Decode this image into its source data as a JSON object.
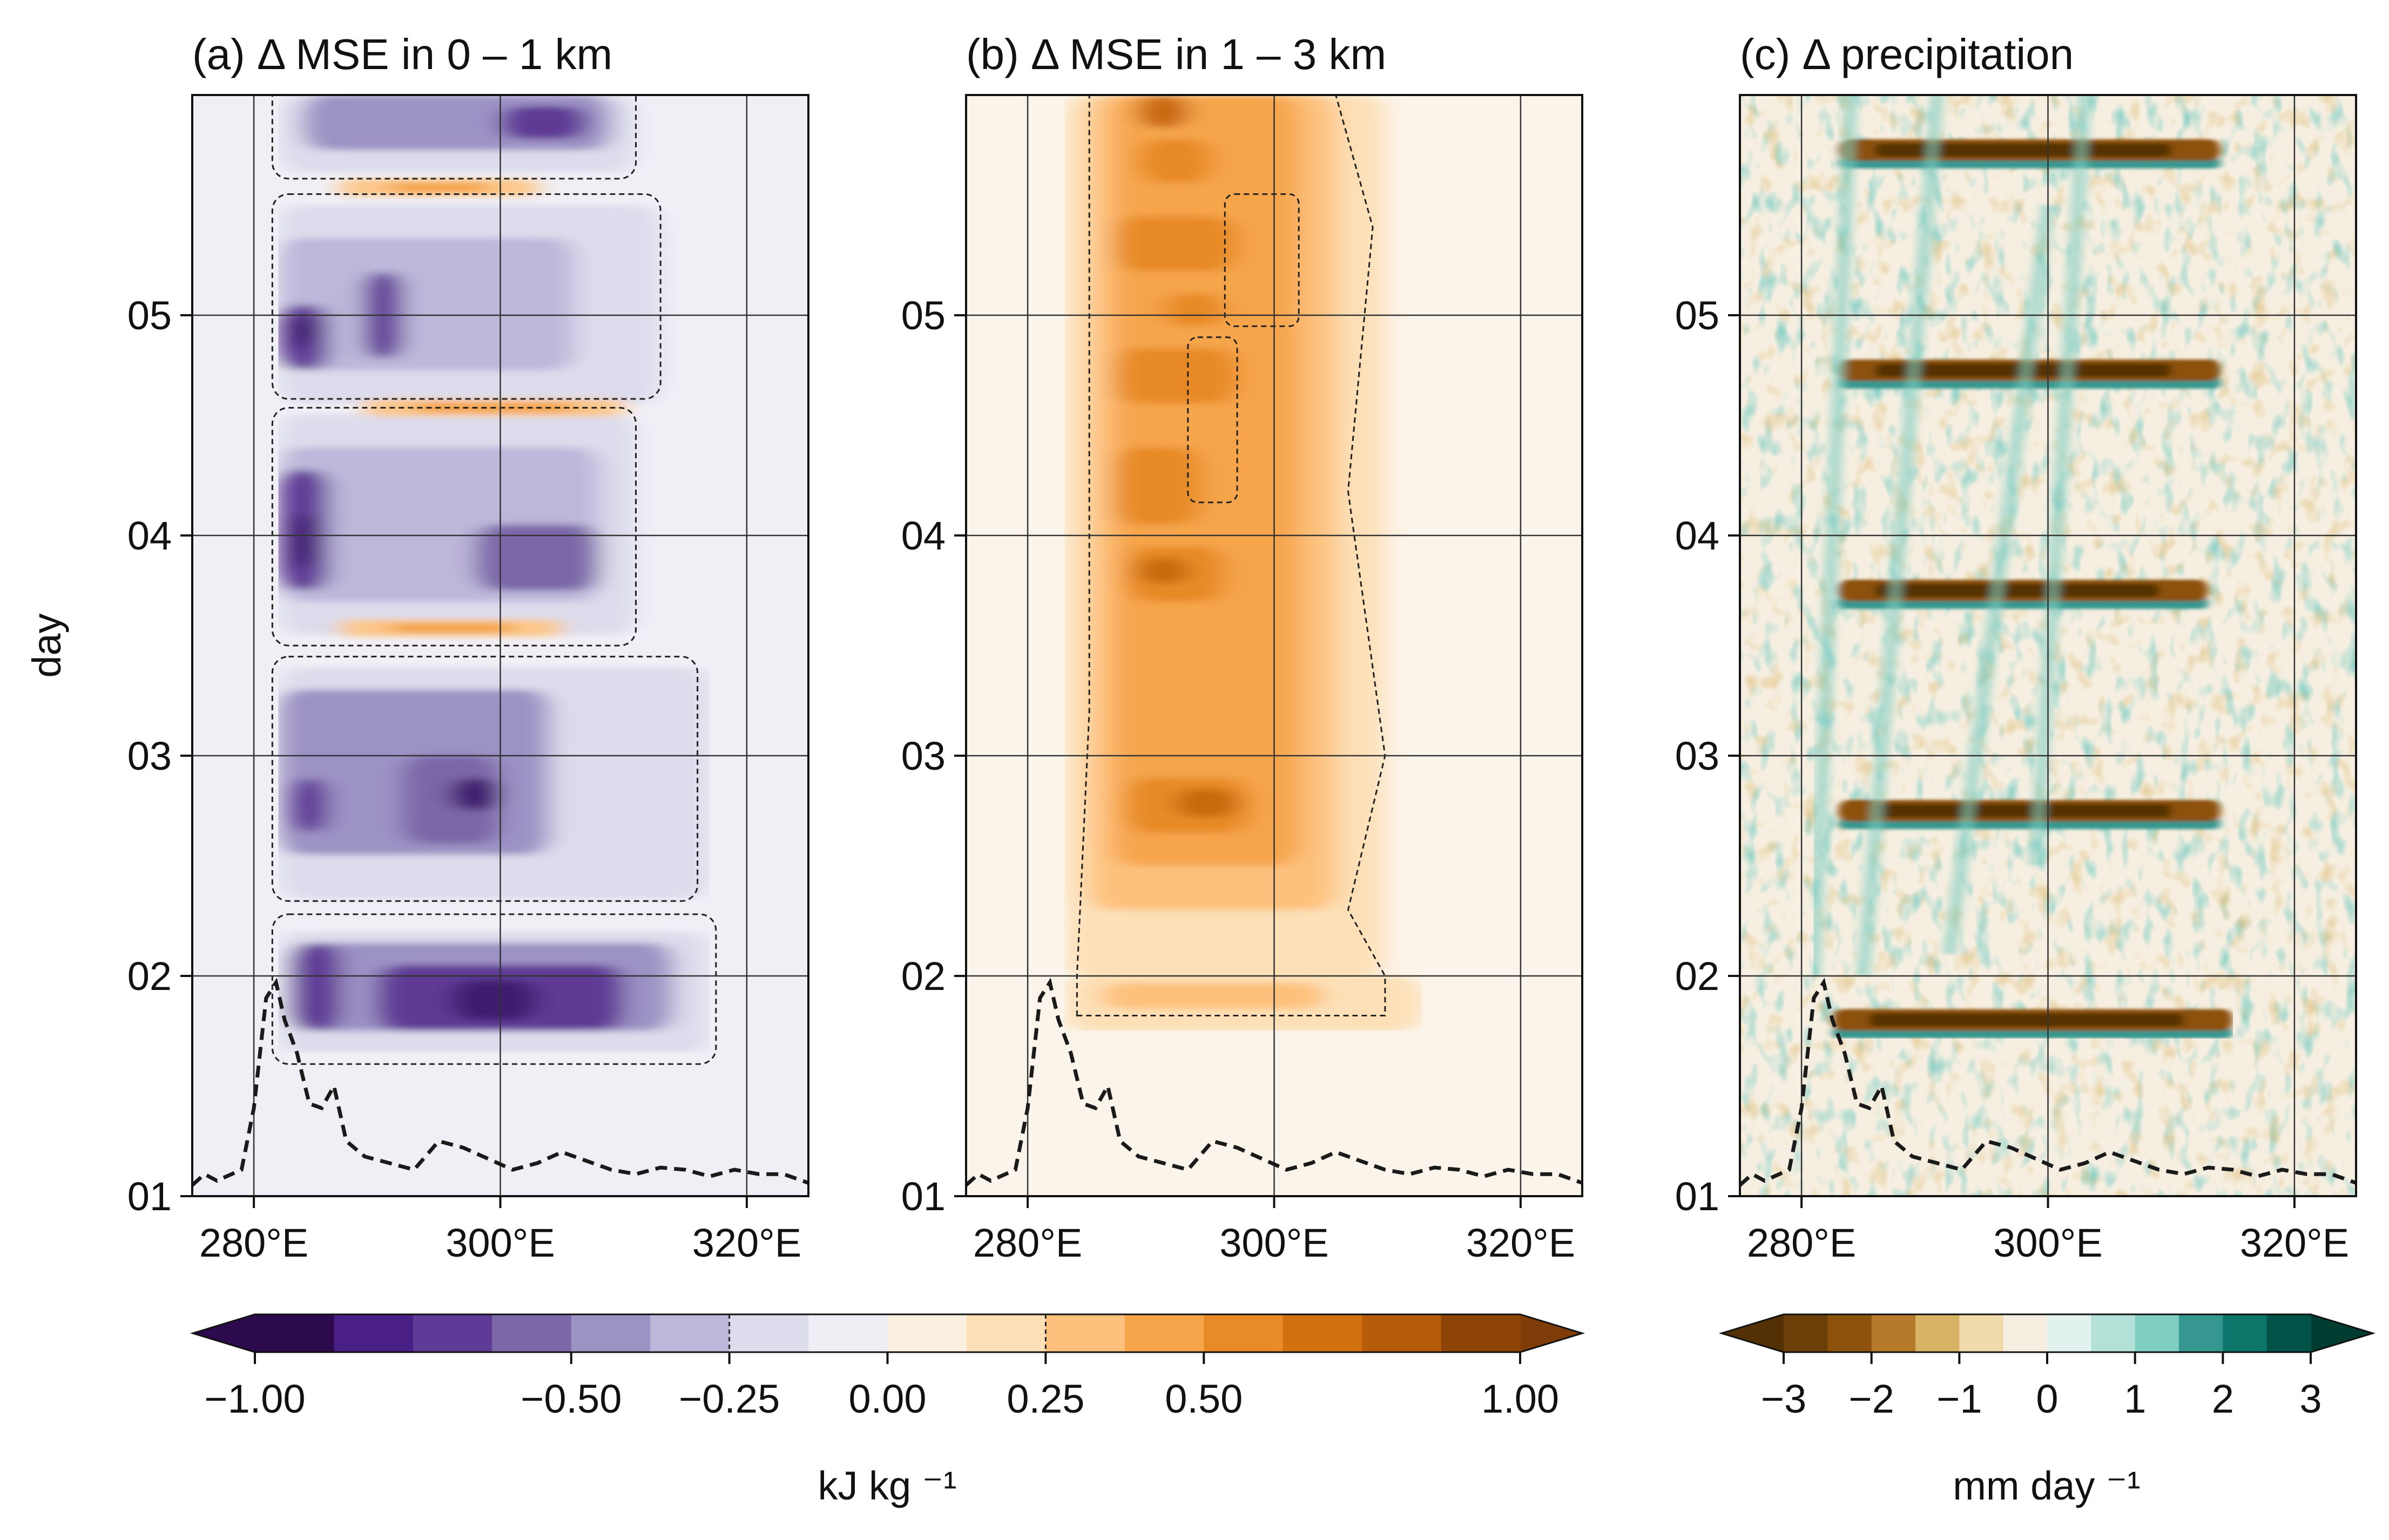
{
  "y_axis_label": "day",
  "chart_data": [
    {
      "type": "heatmap",
      "title": "(a) Δ MSE in 0 – 1 km",
      "x_ticks": [
        280,
        300,
        320
      ],
      "x_tick_labels": [
        "280°E",
        "300°E",
        "320°E"
      ],
      "xlim": [
        275,
        325
      ],
      "y_ticks": [
        1,
        2,
        3,
        4,
        5
      ],
      "y_tick_labels": [
        "01",
        "02",
        "03",
        "04",
        "05"
      ],
      "ylim": [
        1,
        6
      ],
      "ylabel": "day",
      "grid": true,
      "colormap": "purple-orange diverging",
      "dominant_sign": "negative",
      "bands_day": [
        1.75,
        1.93,
        2.2,
        2.45,
        2.8,
        3.1,
        3.55,
        3.85,
        4.45,
        4.85,
        5.55,
        5.85
      ],
      "positive_bands_day": [
        3.58,
        4.58,
        5.58
      ],
      "terrain_profile": [
        [
          275,
          1.05
        ],
        [
          276,
          1.1
        ],
        [
          277,
          1.07
        ],
        [
          279,
          1.12
        ],
        [
          280,
          1.4
        ],
        [
          281,
          1.9
        ],
        [
          281.8,
          1.97
        ],
        [
          282.5,
          1.8
        ],
        [
          283.5,
          1.65
        ],
        [
          284.5,
          1.42
        ],
        [
          285.5,
          1.4
        ],
        [
          286.5,
          1.5
        ],
        [
          287.5,
          1.25
        ],
        [
          289,
          1.18
        ],
        [
          291,
          1.15
        ],
        [
          293,
          1.12
        ],
        [
          295,
          1.25
        ],
        [
          297,
          1.22
        ],
        [
          299,
          1.17
        ],
        [
          301,
          1.12
        ],
        [
          303,
          1.15
        ],
        [
          305,
          1.2
        ],
        [
          307,
          1.16
        ],
        [
          309,
          1.12
        ],
        [
          311,
          1.1
        ],
        [
          313,
          1.13
        ],
        [
          315,
          1.12
        ],
        [
          317,
          1.09
        ],
        [
          319,
          1.12
        ],
        [
          321,
          1.1
        ],
        [
          323,
          1.1
        ],
        [
          325,
          1.06
        ]
      ]
    },
    {
      "type": "heatmap",
      "title": "(b) Δ MSE in 1 – 3 km",
      "x_ticks": [
        280,
        300,
        320
      ],
      "x_tick_labels": [
        "280°E",
        "300°E",
        "320°E"
      ],
      "xlim": [
        275,
        325
      ],
      "y_ticks": [
        1,
        2,
        3,
        4,
        5
      ],
      "y_tick_labels": [
        "01",
        "02",
        "03",
        "04",
        "05"
      ],
      "ylim": [
        1,
        6
      ],
      "grid": true,
      "colormap": "purple-orange diverging",
      "dominant_sign": "positive",
      "bands_day": [
        1.9,
        2.2,
        2.55,
        2.8,
        3.2,
        3.55,
        3.85,
        4.25,
        4.7,
        5.2,
        5.6,
        5.9
      ],
      "terrain_profile": [
        [
          275,
          1.05
        ],
        [
          276,
          1.1
        ],
        [
          277,
          1.07
        ],
        [
          279,
          1.12
        ],
        [
          280,
          1.4
        ],
        [
          281,
          1.9
        ],
        [
          281.8,
          1.97
        ],
        [
          282.5,
          1.8
        ],
        [
          283.5,
          1.65
        ],
        [
          284.5,
          1.42
        ],
        [
          285.5,
          1.4
        ],
        [
          286.5,
          1.5
        ],
        [
          287.5,
          1.25
        ],
        [
          289,
          1.18
        ],
        [
          291,
          1.15
        ],
        [
          293,
          1.12
        ],
        [
          295,
          1.25
        ],
        [
          297,
          1.22
        ],
        [
          299,
          1.17
        ],
        [
          301,
          1.12
        ],
        [
          303,
          1.15
        ],
        [
          305,
          1.2
        ],
        [
          307,
          1.16
        ],
        [
          309,
          1.12
        ],
        [
          311,
          1.1
        ],
        [
          313,
          1.13
        ],
        [
          315,
          1.12
        ],
        [
          317,
          1.09
        ],
        [
          319,
          1.12
        ],
        [
          321,
          1.1
        ],
        [
          323,
          1.1
        ],
        [
          325,
          1.06
        ]
      ]
    },
    {
      "type": "heatmap",
      "title": "(c) Δ precipitation",
      "x_ticks": [
        280,
        300,
        320
      ],
      "x_tick_labels": [
        "280°E",
        "300°E",
        "320°E"
      ],
      "xlim": [
        275,
        325
      ],
      "y_ticks": [
        1,
        2,
        3,
        4,
        5
      ],
      "y_tick_labels": [
        "01",
        "02",
        "03",
        "04",
        "05"
      ],
      "ylim": [
        1,
        6
      ],
      "grid": true,
      "colormap": "brown-teal diverging",
      "dark_bands_day": [
        1.8,
        2.75,
        3.75,
        4.75,
        5.75
      ],
      "terrain_profile": [
        [
          275,
          1.05
        ],
        [
          276,
          1.1
        ],
        [
          277,
          1.07
        ],
        [
          279,
          1.12
        ],
        [
          280,
          1.4
        ],
        [
          281,
          1.9
        ],
        [
          281.8,
          1.97
        ],
        [
          282.5,
          1.8
        ],
        [
          283.5,
          1.65
        ],
        [
          284.5,
          1.42
        ],
        [
          285.5,
          1.4
        ],
        [
          286.5,
          1.5
        ],
        [
          287.5,
          1.25
        ],
        [
          289,
          1.18
        ],
        [
          291,
          1.15
        ],
        [
          293,
          1.12
        ],
        [
          295,
          1.25
        ],
        [
          297,
          1.22
        ],
        [
          299,
          1.17
        ],
        [
          301,
          1.12
        ],
        [
          303,
          1.15
        ],
        [
          305,
          1.2
        ],
        [
          307,
          1.16
        ],
        [
          309,
          1.12
        ],
        [
          311,
          1.1
        ],
        [
          313,
          1.13
        ],
        [
          315,
          1.12
        ],
        [
          317,
          1.09
        ],
        [
          319,
          1.12
        ],
        [
          321,
          1.1
        ],
        [
          323,
          1.1
        ],
        [
          325,
          1.06
        ]
      ]
    }
  ],
  "colorbars": [
    {
      "label": "kJ kg ⁻¹",
      "ticks": [
        -1.0,
        -0.5,
        -0.25,
        0.0,
        0.25,
        0.5,
        1.0
      ],
      "tick_labels": [
        "−1.00",
        "−0.50",
        "−0.25",
        "0.00",
        "0.25",
        "0.50",
        "1.00"
      ],
      "range": [
        -1.0,
        1.0
      ],
      "dashed_contour_levels": [
        -0.25,
        0.25
      ],
      "colors": [
        "#2d0a4e",
        "#4a1f86",
        "#5f3a96",
        "#7b68a8",
        "#9d92c4",
        "#bdb7da",
        "#dcdcec",
        "#efeef5",
        "#fbf0e0",
        "#fde0b7",
        "#fdc17d",
        "#f6a54b",
        "#e78a27",
        "#d0700f",
        "#b65b08",
        "#8e4406"
      ],
      "under_color": "#2d0a4e",
      "over_color": "#7f3b08"
    },
    {
      "label": "mm day ⁻¹",
      "ticks": [
        -3,
        -2,
        -1,
        0,
        1,
        2,
        3
      ],
      "tick_labels": [
        "−3",
        "−2",
        "−1",
        "0",
        "1",
        "2",
        "3"
      ],
      "range": [
        -3,
        3
      ],
      "colors": [
        "#6b3f08",
        "#8c510a",
        "#b7792a",
        "#d8b365",
        "#f0dcaa",
        "#f6efe1",
        "#e2f2ef",
        "#b3e1d8",
        "#80cdc1",
        "#35978f",
        "#0e756b",
        "#01534a"
      ],
      "under_color": "#543005",
      "over_color": "#003c30"
    }
  ]
}
